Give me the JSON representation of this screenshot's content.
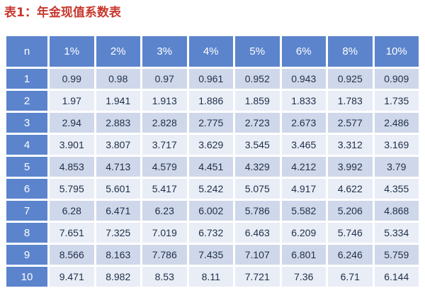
{
  "caption": "表1：年金现值系数表",
  "table": {
    "corner": "n",
    "rates": [
      "1%",
      "2%",
      "3%",
      "4%",
      "5%",
      "6%",
      "8%",
      "10%"
    ],
    "rows": [
      {
        "n": "1",
        "values": [
          "0.99",
          "0.98",
          "0.97",
          "0.961",
          "0.952",
          "0.943",
          "0.925",
          "0.909"
        ]
      },
      {
        "n": "2",
        "values": [
          "1.97",
          "1.941",
          "1.913",
          "1.886",
          "1.859",
          "1.833",
          "1.783",
          "1.735"
        ]
      },
      {
        "n": "3",
        "values": [
          "2.94",
          "2.883",
          "2.828",
          "2.775",
          "2.723",
          "2.673",
          "2.577",
          "2.486"
        ]
      },
      {
        "n": "4",
        "values": [
          "3.901",
          "3.807",
          "3.717",
          "3.629",
          "3.545",
          "3.465",
          "3.312",
          "3.169"
        ]
      },
      {
        "n": "5",
        "values": [
          "4.853",
          "4.713",
          "4.579",
          "4.451",
          "4.329",
          "4.212",
          "3.992",
          "3.79"
        ]
      },
      {
        "n": "6",
        "values": [
          "5.795",
          "5.601",
          "5.417",
          "5.242",
          "5.075",
          "4.917",
          "4.622",
          "4.355"
        ]
      },
      {
        "n": "7",
        "values": [
          "6.28",
          "6.471",
          "6.23",
          "6.002",
          "5.786",
          "5.582",
          "5.206",
          "4.868"
        ]
      },
      {
        "n": "8",
        "values": [
          "7.651",
          "7.325",
          "7.019",
          "6.732",
          "6.463",
          "6.209",
          "5.746",
          "5.334"
        ]
      },
      {
        "n": "9",
        "values": [
          "8.566",
          "8.163",
          "7.786",
          "7.435",
          "7.107",
          "6.801",
          "6.246",
          "5.759"
        ]
      },
      {
        "n": "10",
        "values": [
          "9.471",
          "8.982",
          "8.53",
          "8.11",
          "7.721",
          "7.36",
          "6.71",
          "6.144"
        ]
      }
    ]
  },
  "colors": {
    "caption": "#c8372d",
    "header": "#5b84cc",
    "row_band_dark": "#cfd8ea",
    "row_band_light": "#e9edf6",
    "cell_text": "#1f2f4a"
  }
}
